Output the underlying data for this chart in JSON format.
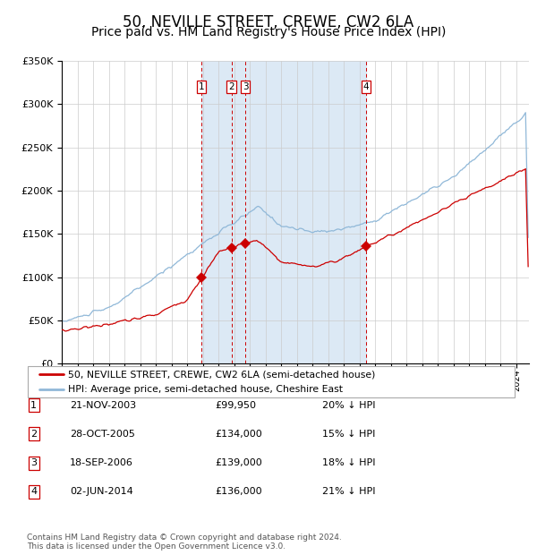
{
  "title": "50, NEVILLE STREET, CREWE, CW2 6LA",
  "subtitle": "Price paid vs. HM Land Registry's House Price Index (HPI)",
  "title_fontsize": 12,
  "subtitle_fontsize": 10,
  "ylim": [
    0,
    350000
  ],
  "xlim_start": 1995.0,
  "xlim_end": 2024.8,
  "background_color": "#ffffff",
  "plot_bg_color": "#ffffff",
  "grid_color": "#cccccc",
  "hpi_line_color": "#90b8d8",
  "price_line_color": "#cc0000",
  "shade_color": "#dce9f5",
  "dashed_line_color": "#cc0000",
  "marker_color": "#cc0000",
  "purchases": [
    {
      "label": "1",
      "date_str": "21-NOV-2003",
      "price": 99950,
      "x_year": 2003.89
    },
    {
      "label": "2",
      "date_str": "28-OCT-2005",
      "price": 134000,
      "x_year": 2005.82
    },
    {
      "label": "3",
      "date_str": "18-SEP-2006",
      "price": 139000,
      "x_year": 2006.71
    },
    {
      "label": "4",
      "date_str": "02-JUN-2014",
      "price": 136000,
      "x_year": 2014.42
    }
  ],
  "shade_regions": [
    {
      "x_start": 2003.89,
      "x_end": 2014.42
    }
  ],
  "legend_line1": "50, NEVILLE STREET, CREWE, CW2 6LA (semi-detached house)",
  "legend_line2": "HPI: Average price, semi-detached house, Cheshire East",
  "footer": "Contains HM Land Registry data © Crown copyright and database right 2024.\nThis data is licensed under the Open Government Licence v3.0.",
  "table_rows": [
    {
      "num": "1",
      "date": "21-NOV-2003",
      "price": "£99,950",
      "pct": "20% ↓ HPI"
    },
    {
      "num": "2",
      "date": "28-OCT-2005",
      "price": "£134,000",
      "pct": "15% ↓ HPI"
    },
    {
      "num": "3",
      "date": "18-SEP-2006",
      "price": "£139,000",
      "pct": "18% ↓ HPI"
    },
    {
      "num": "4",
      "date": "02-JUN-2014",
      "price": "£136,000",
      "pct": "21% ↓ HPI"
    }
  ]
}
